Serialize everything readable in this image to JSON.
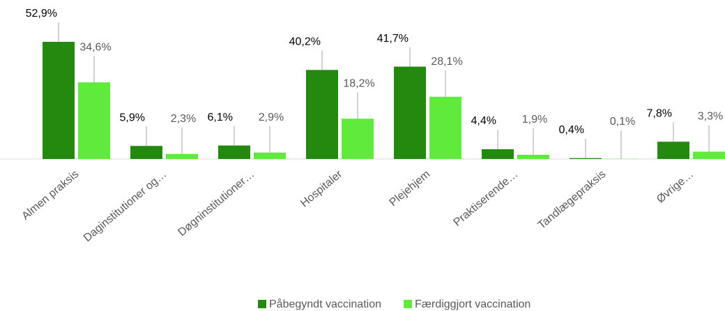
{
  "chart_data": {
    "type": "bar",
    "categories": [
      "Almen praksis",
      "Daginstitutioner og…",
      "Døgninstitutioner…",
      "Hospitaler",
      "Plejehjem",
      "Praktiserende…",
      "Tandlægepraksis",
      "Øvrige…"
    ],
    "series": [
      {
        "name": "Påbegyndt vaccination",
        "color": "#238a0f",
        "values": [
          52.9,
          5.9,
          6.1,
          40.2,
          41.7,
          4.4,
          0.4,
          7.8
        ],
        "value_labels": [
          "52,9%",
          "5,9%",
          "6,1%",
          "40,2%",
          "41,7%",
          "4,4%",
          "0,4%",
          "7,8%"
        ]
      },
      {
        "name": "Færdiggjort vaccination",
        "color": "#5fea3c",
        "values": [
          34.6,
          2.3,
          2.9,
          18.2,
          28.1,
          1.9,
          0.1,
          3.3
        ],
        "value_labels": [
          "34,6%",
          "2,3%",
          "2,9%",
          "18,2%",
          "28,1%",
          "1,9%",
          "0,1%",
          "3,3%"
        ]
      }
    ],
    "legend": "bottom"
  }
}
